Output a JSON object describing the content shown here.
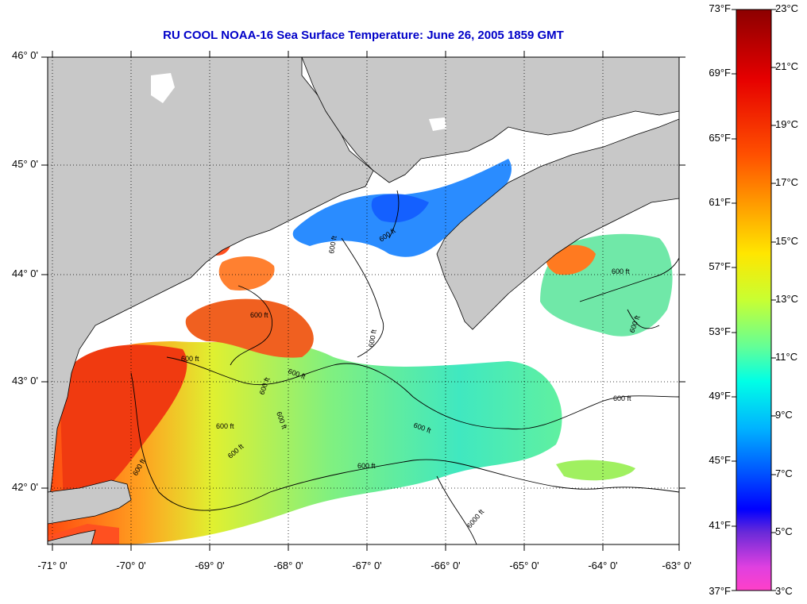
{
  "title": "RU COOL  NOAA-16  Sea Surface Temperature:  June 26, 2005 1859 GMT",
  "map": {
    "longitude_labels": [
      "-71° 0'",
      "-70° 0'",
      "-69° 0'",
      "-68° 0'",
      "-67° 0'",
      "-66° 0'",
      "-65° 0'",
      "-64° 0'",
      "-63° 0'"
    ],
    "latitude_labels": [
      "46° 0'",
      "45° 0'",
      "44° 0'",
      "43° 0'",
      "42° 0'"
    ],
    "contour_labels": {
      "c1": "600 ft",
      "c2": "600 ft",
      "c3": "600 ft",
      "c4": "600 ft",
      "c5": "600 ft",
      "c6": "600 ft",
      "c7": "600 ft",
      "c8": "600 ft",
      "c9": "600 ft",
      "c10": "600 ft",
      "c11": "600 ft",
      "c12": "600 ft",
      "c13": "600 ft",
      "c14": "600 ft",
      "c15": "600 ft",
      "c16": "600 ft",
      "c17": "6000 ft"
    },
    "colors": {
      "land": "#c8c8c8",
      "cloud": "#ffffff",
      "title": "#0000c8"
    }
  },
  "colorbar": {
    "fahrenheit_labels": [
      "73°F",
      "69°F",
      "65°F",
      "61°F",
      "57°F",
      "53°F",
      "49°F",
      "45°F",
      "41°F",
      "37°F"
    ],
    "celsius_labels": [
      "23°C",
      "21°C",
      "19°C",
      "17°C",
      "15°C",
      "13°C",
      "11°C",
      "9°C",
      "7°C",
      "5°C",
      "3°C"
    ],
    "range_celsius": [
      3,
      23
    ],
    "range_fahrenheit": [
      37,
      73
    ]
  }
}
